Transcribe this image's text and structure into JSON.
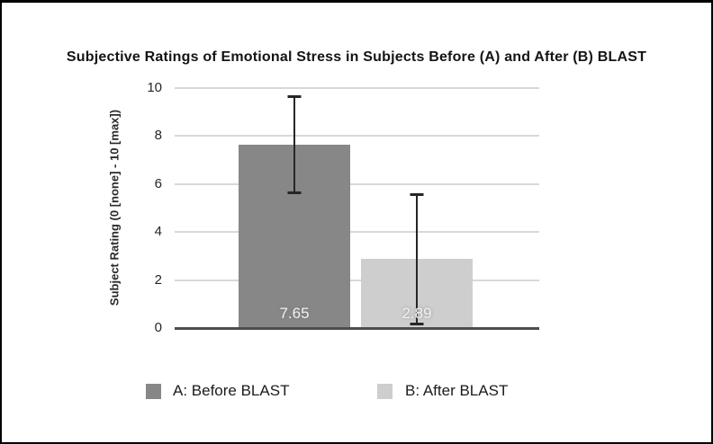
{
  "chart_data": {
    "type": "bar",
    "title": "Subjective Ratings of Emotional Stress in Subjects Before (A) and After (B) BLAST",
    "xlabel": "",
    "ylabel": "Subject Rating (0 [none] - 10 [max])",
    "ylim": [
      0,
      10
    ],
    "yticks": [
      0,
      2,
      4,
      6,
      8,
      10
    ],
    "grid": true,
    "legend_position": "bottom",
    "categories": [
      "A: Before BLAST",
      "B: After BLAST"
    ],
    "series": [
      {
        "name": "A: Before BLAST",
        "value": 7.65,
        "value_label": "7.65",
        "error_high": 9.65,
        "error_low": 5.6,
        "color": "#878787"
      },
      {
        "name": "B: After BLAST",
        "value": 2.89,
        "value_label": "2.89",
        "error_high": 5.58,
        "error_low": 0.15,
        "color": "#cecece"
      }
    ],
    "colors": {
      "gridline": "#d8d8d8",
      "axis_line": "#4d4d4d",
      "error_bar": "#262626",
      "bar_label_text": "#f2f2f2",
      "title_text": "#141414",
      "frame_border": "#000000",
      "background": "#ffffff"
    }
  }
}
